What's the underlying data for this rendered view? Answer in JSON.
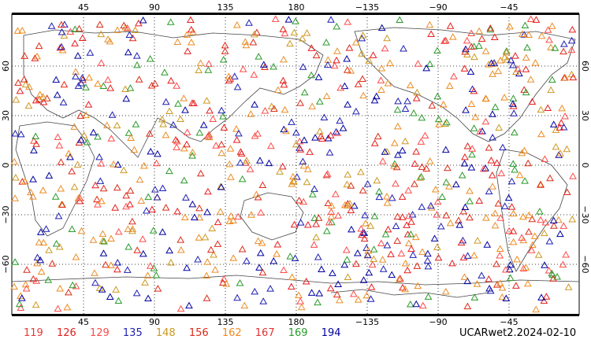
{
  "map": {
    "top_ticks": [
      "45",
      "90",
      "135",
      "180",
      "−135",
      "−90",
      "−45"
    ],
    "bottom_ticks": [
      "45",
      "90",
      "135",
      "180",
      "−135",
      "−90",
      "−45"
    ],
    "left_ticks": [
      "60",
      "30",
      "0",
      "−30",
      "−60"
    ],
    "right_ticks": [
      "60",
      "30",
      "0",
      "−30",
      "−60"
    ],
    "marker_colors": [
      "#e61e1e",
      "#ff4b4b",
      "#e88f2e",
      "#1f1fb4",
      "#cc9922",
      "#dc2b18",
      "#f08a1c",
      "#2a9a2a",
      "#0000a0"
    ]
  },
  "legend": {
    "items": [
      {
        "label": "119",
        "color": "#e53a3a"
      },
      {
        "label": "126",
        "color": "#e61e1e"
      },
      {
        "label": "129",
        "color": "#ff4b4b"
      },
      {
        "label": "135",
        "color": "#1f1fb4"
      },
      {
        "label": "148",
        "color": "#cc9922"
      },
      {
        "label": "156",
        "color": "#dc2b18"
      },
      {
        "label": "162",
        "color": "#f08a1c"
      },
      {
        "label": "167",
        "color": "#e03030"
      },
      {
        "label": "169",
        "color": "#2a9a2a"
      },
      {
        "label": "194",
        "color": "#0000a0"
      }
    ]
  },
  "stamp": "UCARwet2.2024-02-10"
}
